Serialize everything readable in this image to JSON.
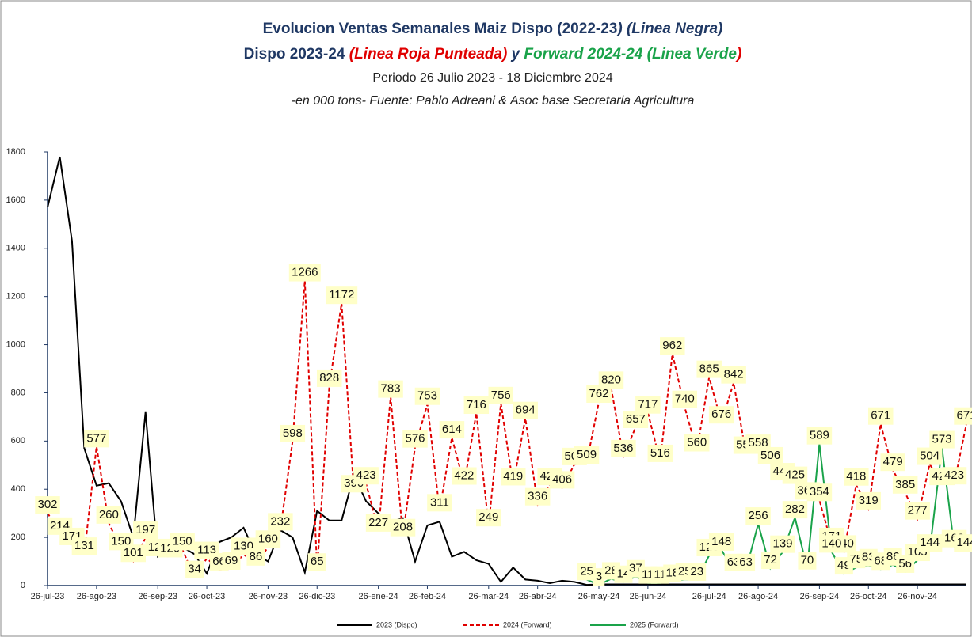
{
  "chart_data": {
    "type": "line",
    "title_line1": [
      {
        "text": "Evolucion Ventas Semanales Maiz Dispo (2022-23",
        "color": "#1f3864",
        "italic": false
      },
      {
        "text": ")  (Linea Negra)",
        "color": "#1f3864",
        "italic": true
      }
    ],
    "title_line2": [
      {
        "text": "Dispo 2023-24",
        "color": "#1f3864",
        "italic": false
      },
      {
        "text": "  (Linea Roja Punteada)",
        "color": "#e00000",
        "italic": true
      },
      {
        "text": "  y ",
        "color": "#1f3864",
        "italic": true
      },
      {
        "text": "Forward 2024-24 (Linea Verde",
        "color": "#1aa34a",
        "italic": true
      },
      {
        "text": ")",
        "color": "#e00000",
        "italic": true
      }
    ],
    "subtitle": "Periodo 26 Julio 2023 - 18 Diciembre 2024",
    "note": "-en 000 tons- Fuente: Pablo Adreani & Asoc base Secretaria Agricultura",
    "categories": [
      "26-jul-23",
      null,
      null,
      null,
      "26-ago-23",
      null,
      null,
      null,
      null,
      "26-sep-23",
      null,
      null,
      null,
      "26-oct-23",
      null,
      null,
      null,
      null,
      "26-nov-23",
      null,
      null,
      null,
      "26-dic-23",
      null,
      null,
      null,
      null,
      "26-ene-24",
      null,
      null,
      null,
      "26-feb-24",
      null,
      null,
      null,
      null,
      "26-mar-24",
      null,
      null,
      null,
      "26-abr-24",
      null,
      null,
      null,
      null,
      "26-may-24",
      null,
      null,
      null,
      "26-jun-24",
      null,
      null,
      null,
      null,
      "26-jul-24",
      null,
      null,
      null,
      "26-ago-24",
      null,
      null,
      null,
      null,
      "26-sep-24",
      null,
      null,
      null,
      "26-oct-24",
      null,
      null,
      null,
      "26-nov-24",
      null,
      null,
      null,
      null
    ],
    "series": [
      {
        "name": "2023 (Dispo)",
        "color": "#000000",
        "dashed": false,
        "labels": false,
        "values": [
          1570,
          1780,
          1430,
          570,
          415,
          425,
          350,
          200,
          720,
          120,
          150,
          160,
          130,
          50,
          180,
          200,
          240,
          130,
          100,
          230,
          200,
          55,
          310,
          270,
          270,
          460,
          350,
          300,
          265,
          280,
          100,
          250,
          265,
          120,
          140,
          105,
          90,
          15,
          75,
          25,
          20,
          10,
          20,
          15,
          3,
          5,
          5,
          5,
          5,
          5,
          5,
          5,
          5,
          5,
          5,
          5,
          5,
          5,
          5,
          5,
          5,
          5,
          5,
          5,
          5,
          5,
          5,
          5,
          5,
          5,
          5,
          5,
          5,
          5,
          5,
          5
        ]
      },
      {
        "name": "2024 (Forward)",
        "color": "#e00000",
        "dashed": true,
        "labels": true,
        "values": [
          302,
          214,
          171,
          131,
          577,
          260,
          150,
          101,
          197,
          125,
          120,
          150,
          34,
          113,
          66,
          69,
          130,
          86,
          160,
          232,
          598,
          1266,
          65,
          828,
          1172,
          390,
          423,
          227,
          783,
          208,
          576,
          753,
          311,
          614,
          422,
          716,
          249,
          756,
          419,
          694,
          336,
          420,
          406,
          503,
          509,
          762,
          820,
          536,
          657,
          717,
          516,
          962,
          740,
          560,
          865,
          676,
          842,
          550,
          558,
          506,
          440,
          425,
          360,
          354,
          171,
          140,
          418,
          319,
          671,
          479,
          385,
          277,
          504,
          420,
          423,
          671
        ]
      },
      {
        "name": "2025 (Forward)",
        "color": "#1aa34a",
        "dashed": false,
        "labels": true,
        "values": [
          null,
          null,
          null,
          null,
          null,
          null,
          null,
          null,
          null,
          null,
          null,
          null,
          null,
          null,
          null,
          null,
          null,
          null,
          null,
          null,
          null,
          null,
          null,
          null,
          null,
          null,
          null,
          null,
          null,
          null,
          null,
          null,
          null,
          null,
          null,
          null,
          null,
          null,
          null,
          null,
          null,
          null,
          null,
          null,
          25,
          3,
          28,
          14,
          37,
          11,
          11,
          18,
          25,
          23,
          125,
          148,
          63,
          63,
          256,
          72,
          139,
          282,
          70,
          589,
          140,
          49,
          75,
          83,
          68,
          86,
          56,
          105,
          144,
          573,
          162,
          144
        ]
      }
    ],
    "ylim": [
      0,
      1800
    ],
    "yticks": [
      0,
      200,
      400,
      600,
      800,
      1000,
      1200,
      1400,
      1600,
      1800
    ]
  }
}
